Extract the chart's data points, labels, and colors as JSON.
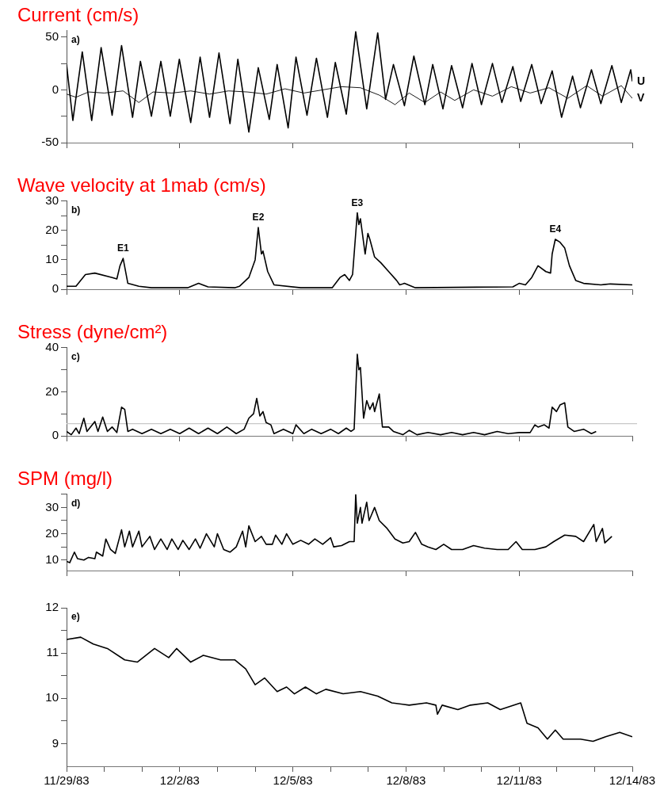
{
  "chart_data": [
    {
      "type": "line",
      "title": "Current (cm/s)",
      "annotations": [
        "a)"
      ],
      "marker": "none",
      "tick_labels": "y",
      "xlim": [
        "1983-11-29",
        "1983-12-14"
      ],
      "xticks": [
        {
          "value": "1983-11-29",
          "label": null
        },
        {
          "value": "1983-12-02",
          "label": null
        },
        {
          "value": "1983-12-05",
          "label": null
        },
        {
          "value": "1983-12-08",
          "label": null
        },
        {
          "value": "1983-12-11",
          "label": null
        },
        {
          "value": "1983-12-14",
          "label": null
        }
      ],
      "ylim": [
        -50,
        56
      ],
      "yticks": [
        -50,
        {
          "value": -25,
          "label": null
        },
        0,
        {
          "value": 25,
          "label": null
        },
        50
      ],
      "series": [
        {
          "name": "U",
          "color": "#000000",
          "x": [
            "1983-11-29T00:00",
            "1983-11-29T04:00",
            "1983-11-29T10:00",
            "1983-11-29T16:00",
            "1983-11-29T22:00",
            "1983-11-30T05:00",
            "1983-11-30T11:00",
            "1983-11-30T18:00",
            "1983-11-30T23:00",
            "1983-12-01T06:00",
            "1983-12-01T12:00",
            "1983-12-01T18:00",
            "1983-12-01T23:45",
            "1983-12-02T07:00",
            "1983-12-02T13:00",
            "1983-12-02T19:00",
            "1983-12-03T01:00",
            "1983-12-03T08:00",
            "1983-12-03T13:00",
            "1983-12-03T20:00",
            "1983-12-04T02:00",
            "1983-12-04T09:00",
            "1983-12-04T14:00",
            "1983-12-04T21:00",
            "1983-12-05T02:00",
            "1983-12-05T09:00",
            "1983-12-05T15:00",
            "1983-12-05T22:00",
            "1983-12-06T03:00",
            "1983-12-06T10:00",
            "1983-12-06T16:00",
            "1983-12-06T23:00",
            "1983-12-07T06:00",
            "1983-12-07T11:00",
            "1983-12-07T16:00",
            "1983-12-07T23:00",
            "1983-12-08T05:00",
            "1983-12-08T12:00",
            "1983-12-08T17:00",
            "1983-12-08T23:30",
            "1983-12-09T05:00",
            "1983-12-09T12:00",
            "1983-12-09T18:00",
            "1983-12-10T00:00",
            "1983-12-10T07:00",
            "1983-12-10T13:00",
            "1983-12-10T20:00",
            "1983-12-11T01:00",
            "1983-12-11T08:00",
            "1983-12-11T14:00",
            "1983-12-11T21:00",
            "1983-12-12T03:00",
            "1983-12-12T10:00",
            "1983-12-12T15:00",
            "1983-12-12T22:00",
            "1983-12-13T04:00",
            "1983-12-13T11:00",
            "1983-12-13T17:00",
            "1983-12-13T23:00",
            "1983-12-14T00:00"
          ],
          "values": [
            24,
            -29,
            36,
            -29,
            40,
            -24,
            42,
            -26,
            27,
            -25,
            27,
            -25,
            29,
            -31,
            31,
            -26,
            35,
            -32,
            29,
            -40,
            21,
            -28,
            24,
            -36,
            31,
            -24,
            30,
            -26,
            26,
            -23,
            55,
            -18,
            54,
            -9,
            24,
            -15,
            32,
            -14,
            24,
            -18,
            23,
            -17,
            25,
            -14,
            25,
            -12,
            22,
            -11,
            24,
            -13,
            18,
            -26,
            13,
            -17,
            19,
            -13,
            23,
            -12,
            19,
            8
          ]
        },
        {
          "name": "V",
          "color": "#000000",
          "x": [
            "1983-11-29T00:00",
            "1983-11-29T06:00",
            "1983-11-29T14:00",
            "1983-11-30T00:00",
            "1983-11-30T12:00",
            "1983-11-30T22:00",
            "1983-12-01T07:00",
            "1983-12-01T19:00",
            "1983-12-02T07:00",
            "1983-12-02T19:00",
            "1983-12-03T07:00",
            "1983-12-03T19:00",
            "1983-12-04T07:00",
            "1983-12-04T19:00",
            "1983-12-05T07:00",
            "1983-12-05T19:00",
            "1983-12-06T07:00",
            "1983-12-06T19:00",
            "1983-12-07T07:00",
            "1983-12-07T17:00",
            "1983-12-08T02:00",
            "1983-12-08T12:00",
            "1983-12-08T22:00",
            "1983-12-09T07:00",
            "1983-12-09T19:00",
            "1983-12-10T07:00",
            "1983-12-10T19:00",
            "1983-12-11T07:00",
            "1983-12-11T19:00",
            "1983-12-12T07:00",
            "1983-12-12T19:00",
            "1983-12-13T05:00",
            "1983-12-13T17:00",
            "1983-12-14T00:00"
          ],
          "values": [
            -4,
            -7,
            -2,
            -3,
            -1,
            -12,
            -2,
            -3,
            -1,
            -4,
            -1,
            -2,
            -4,
            1,
            -3,
            0,
            3,
            2,
            -5,
            -14,
            -3,
            -12,
            -2,
            -10,
            0,
            -6,
            3,
            -3,
            2,
            -8,
            4,
            -6,
            4,
            -8
          ]
        }
      ]
    },
    {
      "type": "line",
      "title": "Wave velocity at 1mab (cm/s)",
      "annotations": [
        "b)",
        {
          "text": "E1",
          "x": "1983-11-30T12:00",
          "y": 10.5
        },
        {
          "text": "E2",
          "x": "1983-12-04T02:00",
          "y": 21
        },
        {
          "text": "E3",
          "x": "1983-12-06T17:00",
          "y": 26
        },
        {
          "text": "E4",
          "x": "1983-12-11T23:00",
          "y": 17
        }
      ],
      "marker": "none",
      "tick_labels": "y",
      "xlim": [
        "1983-11-29",
        "1983-12-14"
      ],
      "xticks": [
        {
          "value": "1983-11-29",
          "label": null
        },
        {
          "value": "1983-12-02",
          "label": null
        },
        {
          "value": "1983-12-05",
          "label": null
        },
        {
          "value": "1983-12-08",
          "label": null
        },
        {
          "value": "1983-12-11",
          "label": null
        },
        {
          "value": "1983-12-14",
          "label": null
        }
      ],
      "ylim": [
        0,
        30
      ],
      "yticks": [
        0,
        {
          "value": 5,
          "label": null
        },
        10,
        {
          "value": 15,
          "label": null
        },
        20,
        {
          "value": 25,
          "label": null
        },
        30
      ],
      "series": [
        {
          "color": "#000000",
          "x": [
            "1983-11-29T00:00",
            "1983-11-29T06:00",
            "1983-11-29T12:00",
            "1983-11-29T18:00",
            "1983-11-30T05:00",
            "1983-11-30T08:00",
            "1983-11-30T10:00",
            "1983-11-30T12:00",
            "1983-11-30T15:00",
            "1983-11-30T22:00",
            "1983-12-01T06:00",
            "1983-12-02T05:00",
            "1983-12-02T12:00",
            "1983-12-02T18:00",
            "1983-12-03T11:00",
            "1983-12-03T14:00",
            "1983-12-03T20:00",
            "1983-12-04T00:00",
            "1983-12-04T02:00",
            "1983-12-04T04:00",
            "1983-12-04T05:00",
            "1983-12-04T08:00",
            "1983-12-04T12:00",
            "1983-12-05T05:00",
            "1983-12-06T01:00",
            "1983-12-06T06:00",
            "1983-12-06T09:00",
            "1983-12-06T12:00",
            "1983-12-06T14:00",
            "1983-12-06T17:00",
            "1983-12-06T18:00",
            "1983-12-06T19:00",
            "1983-12-06T22:00",
            "1983-12-06T23:45",
            "1983-12-07T01:00",
            "1983-12-07T04:00",
            "1983-12-07T08:00",
            "1983-12-07T13:00",
            "1983-12-07T18:00",
            "1983-12-07T20:00",
            "1983-12-07T23:00",
            "1983-12-08T06:00",
            "1983-12-09T21:00",
            "1983-12-10T20:00",
            "1983-12-11T00:00",
            "1983-12-11T04:00",
            "1983-12-11T08:00",
            "1983-12-11T12:00",
            "1983-12-11T17:00",
            "1983-12-11T20:00",
            "1983-12-11T21:00",
            "1983-12-11T23:00",
            "1983-12-12T02:00",
            "1983-12-12T05:00",
            "1983-12-12T08:00",
            "1983-12-12T12:00",
            "1983-12-12T17:00",
            "1983-12-13T04:00",
            "1983-12-13T10:00",
            "1983-12-14T00:00"
          ],
          "values": [
            1,
            1,
            5,
            5.5,
            4,
            3.5,
            8,
            10.5,
            2,
            1,
            0.5,
            0.5,
            2,
            0.8,
            0.5,
            1,
            4,
            10,
            21,
            12,
            13,
            6,
            1.5,
            0.5,
            0.5,
            4,
            5,
            3,
            5,
            26,
            22,
            24,
            12,
            19,
            17,
            11,
            9,
            6,
            3,
            1.5,
            2,
            0.5,
            0.7,
            0.8,
            2,
            1.5,
            4,
            8,
            6,
            5.5,
            12,
            17,
            16,
            14,
            8,
            3,
            2,
            1.5,
            1.8,
            1.5
          ]
        }
      ]
    },
    {
      "type": "line",
      "title": "Stress (dyne/cm²)",
      "annotations": [
        "c)"
      ],
      "marker": "none",
      "tick_labels": "y",
      "ref_lines": [
        {
          "axis": "y",
          "value": 5.5,
          "color": "#c8c8c8"
        }
      ],
      "xlim": [
        "1983-11-29",
        "1983-12-14"
      ],
      "xticks": [
        {
          "value": "1983-11-29",
          "label": null
        },
        {
          "value": "1983-12-02",
          "label": null
        },
        {
          "value": "1983-12-05",
          "label": null
        },
        {
          "value": "1983-12-08",
          "label": null
        },
        {
          "value": "1983-12-11",
          "label": null
        },
        {
          "value": "1983-12-14",
          "label": null
        }
      ],
      "ylim": [
        0,
        40
      ],
      "yticks": [
        0,
        {
          "value": 10,
          "label": null
        },
        20,
        {
          "value": 30,
          "label": null
        },
        40
      ],
      "series": [
        {
          "color": "#000000",
          "x": [
            "1983-11-29T00:00",
            "1983-11-29T03:00",
            "1983-11-29T06:00",
            "1983-11-29T08:00",
            "1983-11-29T11:00",
            "1983-11-29T13:00",
            "1983-11-29T18:00",
            "1983-11-29T20:00",
            "1983-11-29T23:00",
            "1983-11-30T02:00",
            "1983-11-30T05:00",
            "1983-11-30T08:00",
            "1983-11-30T11:00",
            "1983-11-30T13:00",
            "1983-11-30T15:00",
            "1983-11-30T18:00",
            "1983-12-01T00:00",
            "1983-12-01T06:00",
            "1983-12-01T12:00",
            "1983-12-01T18:00",
            "1983-12-02T00:00",
            "1983-12-02T06:00",
            "1983-12-02T12:00",
            "1983-12-02T18:00",
            "1983-12-03T00:00",
            "1983-12-03T06:00",
            "1983-12-03T12:00",
            "1983-12-03T17:00",
            "1983-12-03T20:00",
            "1983-12-03T23:00",
            "1983-12-04T01:00",
            "1983-12-04T03:00",
            "1983-12-04T05:00",
            "1983-12-04T07:00",
            "1983-12-04T10:00",
            "1983-12-04T12:00",
            "1983-12-04T18:00",
            "1983-12-05T00:00",
            "1983-12-05T02:00",
            "1983-12-05T07:00",
            "1983-12-05T12:00",
            "1983-12-05T18:00",
            "1983-12-06T00:00",
            "1983-12-06T05:00",
            "1983-12-06T10:00",
            "1983-12-06T13:00",
            "1983-12-06T15:00",
            "1983-12-06T17:00",
            "1983-12-06T18:00",
            "1983-12-06T19:00",
            "1983-12-06T21:00",
            "1983-12-06T23:00",
            "1983-12-07T01:00",
            "1983-12-07T03:00",
            "1983-12-07T04:00",
            "1983-12-07T07:00",
            "1983-12-07T09:00",
            "1983-12-07T13:00",
            "1983-12-07T16:00",
            "1983-12-07T22:00",
            "1983-12-08T02:00",
            "1983-12-08T07:00",
            "1983-12-08T14:00",
            "1983-12-08T22:00",
            "1983-12-09T05:00",
            "1983-12-09T12:00",
            "1983-12-09T19:00",
            "1983-12-10T02:00",
            "1983-12-10T10:00",
            "1983-12-10T17:00",
            "1983-12-11T00:00",
            "1983-12-11T07:00",
            "1983-12-11T10:00",
            "1983-12-11T12:00",
            "1983-12-11T16:00",
            "1983-12-11T19:00",
            "1983-12-11T21:00",
            "1983-12-11T23:45",
            "1983-12-12T02:00",
            "1983-12-12T05:00",
            "1983-12-12T07:00",
            "1983-12-12T11:00",
            "1983-12-12T17:00",
            "1983-12-12T22:00",
            "1983-12-13T01:00"
          ],
          "values": [
            2,
            0.5,
            3.5,
            1,
            8,
            2,
            6.5,
            2,
            8.5,
            2,
            4,
            1.5,
            13,
            12,
            2,
            3,
            1,
            3,
            1,
            3,
            1,
            3.5,
            1,
            3.5,
            1,
            4,
            1,
            3,
            8,
            10,
            17,
            9,
            11,
            6,
            5,
            1,
            3,
            1,
            5,
            1,
            3,
            1,
            3,
            1,
            3.5,
            2,
            3,
            37,
            30,
            31,
            8,
            16,
            12,
            15,
            11,
            19,
            4,
            4,
            2,
            0.5,
            2.5,
            0.5,
            1.5,
            0.5,
            1.5,
            0.5,
            1.5,
            0.5,
            2,
            1,
            1.5,
            1.5,
            5,
            4,
            5,
            3.5,
            13,
            11,
            14,
            15,
            4,
            2,
            3,
            1,
            2
          ]
        }
      ]
    },
    {
      "type": "line",
      "title": "SPM (mg/l)",
      "annotations": [
        "d)"
      ],
      "marker": "none",
      "tick_labels": "y",
      "xlim": [
        "1983-11-29",
        "1983-12-14"
      ],
      "xticks": [
        {
          "value": "1983-11-29",
          "label": null
        },
        {
          "value": "1983-12-02",
          "label": null
        },
        {
          "value": "1983-12-05",
          "label": null
        },
        {
          "value": "1983-12-08",
          "label": null
        },
        {
          "value": "1983-12-11",
          "label": null
        },
        {
          "value": "1983-12-14",
          "label": null
        }
      ],
      "ylim": [
        6,
        35
      ],
      "yticks": [
        10,
        {
          "value": 15,
          "label": null
        },
        20,
        {
          "value": 25,
          "label": null
        },
        30,
        {
          "value": 35,
          "label": null
        }
      ],
      "series": [
        {
          "color": "#000000",
          "x": [
            "1983-11-29T00:00",
            "1983-11-29T02:00",
            "1983-11-29T05:00",
            "1983-11-29T07:00",
            "1983-11-29T11:00",
            "1983-11-29T14:00",
            "1983-11-29T18:00",
            "1983-11-29T19:00",
            "1983-11-29T23:00",
            "1983-11-30T01:00",
            "1983-11-30T04:00",
            "1983-11-30T07:00",
            "1983-11-30T11:00",
            "1983-11-30T13:00",
            "1983-11-30T16:00",
            "1983-11-30T18:00",
            "1983-11-30T22:00",
            "1983-12-01T00:00",
            "1983-12-01T05:00",
            "1983-12-01T08:00",
            "1983-12-01T12:00",
            "1983-12-01T16:00",
            "1983-12-01T19:00",
            "1983-12-01T23:00",
            "1983-12-02T02:00",
            "1983-12-02T06:00",
            "1983-12-02T10:00",
            "1983-12-02T13:00",
            "1983-12-02T17:00",
            "1983-12-02T22:00",
            "1983-12-03T00:00",
            "1983-12-03T04:00",
            "1983-12-03T08:00",
            "1983-12-03T12:00",
            "1983-12-03T16:00",
            "1983-12-03T18:00",
            "1983-12-03T20:00",
            "1983-12-04T00:00",
            "1983-12-04T04:00",
            "1983-12-04T07:00",
            "1983-12-04T11:00",
            "1983-12-04T13:00",
            "1983-12-04T17:00",
            "1983-12-04T20:00",
            "1983-12-05T00:00",
            "1983-12-05T05:00",
            "1983-12-05T10:00",
            "1983-12-05T14:00",
            "1983-12-05T19:00",
            "1983-12-06T00:00",
            "1983-12-06T02:00",
            "1983-12-06T07:00",
            "1983-12-06T12:00",
            "1983-12-06T15:00",
            "1983-12-06T16:00",
            "1983-12-06T17:00",
            "1983-12-06T19:00",
            "1983-12-06T20:00",
            "1983-12-06T23:00",
            "1983-12-07T00:30",
            "1983-12-07T04:00",
            "1983-12-07T07:00",
            "1983-12-07T12:00",
            "1983-12-07T17:00",
            "1983-12-07T22:00",
            "1983-12-08T02:00",
            "1983-12-08T06:00",
            "1983-12-08T10:00",
            "1983-12-08T14:00",
            "1983-12-08T19:00",
            "1983-12-09T00:00",
            "1983-12-09T05:00",
            "1983-12-09T12:00",
            "1983-12-09T19:00",
            "1983-12-10T02:00",
            "1983-12-10T10:00",
            "1983-12-10T17:00",
            "1983-12-10T22:00",
            "1983-12-11T02:00",
            "1983-12-11T10:00",
            "1983-12-11T17:00",
            "1983-12-11T22:00",
            "1983-12-12T05:00",
            "1983-12-12T12:00",
            "1983-12-12T17:00",
            "1983-12-12T23:30",
            "1983-12-13T01:00",
            "1983-12-13T05:00",
            "1983-12-13T06:30",
            "1983-12-13T11:00"
          ],
          "values": [
            9.5,
            9,
            13,
            10.5,
            10,
            11,
            10.5,
            13,
            11.5,
            18,
            14,
            12.5,
            21.5,
            15,
            21,
            15,
            21,
            15,
            19,
            14,
            18,
            14,
            18,
            14,
            17.5,
            14,
            18,
            14.5,
            20,
            15,
            20,
            14,
            13,
            15,
            21,
            15,
            23,
            17,
            19,
            16,
            16,
            19.5,
            16,
            20,
            16,
            17.5,
            16,
            18,
            16,
            18.5,
            15,
            15.5,
            17,
            17,
            35,
            24,
            30,
            24,
            32,
            25,
            30,
            25,
            22,
            18,
            16.5,
            17,
            20.5,
            16,
            15,
            14,
            16,
            14,
            14,
            15.5,
            14.5,
            14,
            14,
            17,
            14,
            14,
            15,
            17,
            19.5,
            19,
            17,
            23.5,
            17,
            22,
            16.5,
            19
          ]
        }
      ]
    },
    {
      "type": "line",
      "annotations": [
        "e)"
      ],
      "marker": "none",
      "xlim": [
        "1983-11-29",
        "1983-12-14"
      ],
      "xticks": [
        {
          "value": "1983-11-29",
          "label": "11/29/83"
        },
        {
          "value": "1983-11-30",
          "label": null
        },
        {
          "value": "1983-12-01",
          "label": null
        },
        {
          "value": "1983-12-02",
          "label": "12/2/83"
        },
        {
          "value": "1983-12-03",
          "label": null
        },
        {
          "value": "1983-12-04",
          "label": null
        },
        {
          "value": "1983-12-05",
          "label": "12/5/83"
        },
        {
          "value": "1983-12-06",
          "label": null
        },
        {
          "value": "1983-12-07",
          "label": null
        },
        {
          "value": "1983-12-08",
          "label": "12/8/83"
        },
        {
          "value": "1983-12-09",
          "label": null
        },
        {
          "value": "1983-12-10",
          "label": null
        },
        {
          "value": "1983-12-11",
          "label": "12/11/83"
        },
        {
          "value": "1983-12-12",
          "label": null
        },
        {
          "value": "1983-12-13",
          "label": null
        },
        {
          "value": "1983-12-14",
          "label": "12/14/83"
        }
      ],
      "ylim": [
        8.5,
        12
      ],
      "yticks": [
        9,
        {
          "value": 9.5,
          "label": null
        },
        10,
        {
          "value": 10.5,
          "label": null
        },
        11,
        {
          "value": 11.5,
          "label": null
        },
        12
      ],
      "series": [
        {
          "color": "#000000",
          "x": [
            "1983-11-29T00:00",
            "1983-11-29T09:00",
            "1983-11-29T17:00",
            "1983-11-30T02:00",
            "1983-11-30T13:00",
            "1983-11-30T21:00",
            "1983-12-01T08:00",
            "1983-12-01T17:00",
            "1983-12-01T22:00",
            "1983-12-02T07:00",
            "1983-12-02T15:00",
            "1983-12-03T02:00",
            "1983-12-03T11:00",
            "1983-12-03T18:00",
            "1983-12-04T00:00",
            "1983-12-04T06:00",
            "1983-12-04T14:00",
            "1983-12-04T20:00",
            "1983-12-05T01:00",
            "1983-12-05T08:00",
            "1983-12-05T15:00",
            "1983-12-05T21:00",
            "1983-12-06T08:00",
            "1983-12-06T19:00",
            "1983-12-07T06:00",
            "1983-12-07T15:00",
            "1983-12-08T02:00",
            "1983-12-08T13:00",
            "1983-12-08T19:00",
            "1983-12-08T20:00",
            "1983-12-08T23:00",
            "1983-12-09T09:00",
            "1983-12-09T17:00",
            "1983-12-10T04:00",
            "1983-12-10T12:00",
            "1983-12-11T01:00",
            "1983-12-11T05:00",
            "1983-12-11T12:00",
            "1983-12-11T18:00",
            "1983-12-11T23:00",
            "1983-12-12T04:00",
            "1983-12-12T15:00",
            "1983-12-12T23:00",
            "1983-12-13T07:00",
            "1983-12-13T16:00",
            "1983-12-14T00:00"
          ],
          "values": [
            11.3,
            11.35,
            11.2,
            11.1,
            10.85,
            10.8,
            11.1,
            10.9,
            11.1,
            10.8,
            10.95,
            10.85,
            10.85,
            10.65,
            10.3,
            10.45,
            10.15,
            10.25,
            10.1,
            10.25,
            10.1,
            10.2,
            10.1,
            10.15,
            10.05,
            9.9,
            9.85,
            9.9,
            9.85,
            9.65,
            9.85,
            9.75,
            9.85,
            9.9,
            9.75,
            9.9,
            9.45,
            9.35,
            9.1,
            9.3,
            9.1,
            9.1,
            9.05,
            9.15,
            9.25,
            9.15
          ]
        }
      ]
    }
  ]
}
